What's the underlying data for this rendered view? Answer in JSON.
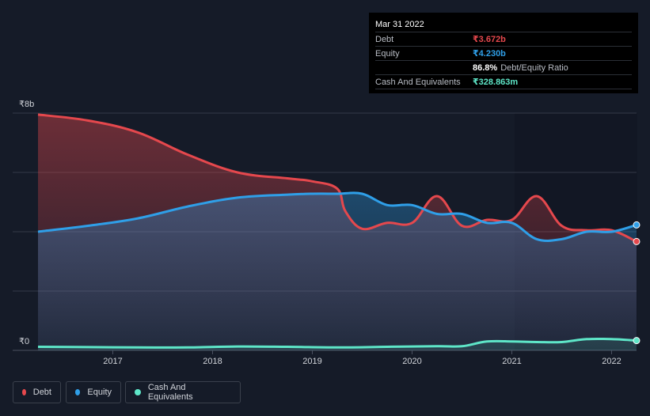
{
  "tooltip": {
    "date": "Mar 31 2022",
    "rows": [
      {
        "label": "Debt",
        "value": "₹3.672b",
        "color": "#e5484d"
      },
      {
        "label": "Equity",
        "value": "₹4.230b",
        "color": "#2f9fe8"
      },
      {
        "label": "",
        "ratio_value": "86.8%",
        "ratio_label": "Debt/Equity Ratio"
      },
      {
        "label": "Cash And Equivalents",
        "value": "₹328.863m",
        "color": "#5ee6c8"
      }
    ]
  },
  "legend": [
    {
      "label": "Debt",
      "color": "#e5484d"
    },
    {
      "label": "Equity",
      "color": "#2f9fe8"
    },
    {
      "label": "Cash And Equivalents",
      "color": "#5ee6c8"
    }
  ],
  "chart_data": {
    "type": "area",
    "title": "",
    "xlabel": "",
    "ylabel": "",
    "unit": "₹ billions",
    "xlim": [
      2016.25,
      2022.25
    ],
    "ylim": [
      0,
      8
    ],
    "y_tick_labels": [
      {
        "value": 8,
        "label": "₹8b"
      },
      {
        "value": 0,
        "label": "₹0"
      }
    ],
    "x_ticks": [
      2017,
      2018,
      2019,
      2020,
      2021,
      2022
    ],
    "x_tick_labels": [
      "2017",
      "2018",
      "2019",
      "2020",
      "2021",
      "2022"
    ],
    "grid": true,
    "series": [
      {
        "name": "Debt",
        "color": "#e5484d",
        "x": [
          2016.25,
          2016.75,
          2017.25,
          2017.75,
          2018.25,
          2018.75,
          2019.0,
          2019.25,
          2019.33,
          2019.5,
          2019.75,
          2020.0,
          2020.25,
          2020.5,
          2020.75,
          2021.0,
          2021.25,
          2021.5,
          2021.75,
          2022.0,
          2022.25
        ],
        "values": [
          7.95,
          7.75,
          7.35,
          6.6,
          6.0,
          5.8,
          5.7,
          5.45,
          4.7,
          4.1,
          4.3,
          4.3,
          5.2,
          4.2,
          4.4,
          4.4,
          5.2,
          4.2,
          4.05,
          4.05,
          3.67
        ]
      },
      {
        "name": "Equity",
        "color": "#2f9fe8",
        "x": [
          2016.25,
          2016.75,
          2017.25,
          2017.75,
          2018.25,
          2018.75,
          2019.0,
          2019.25,
          2019.5,
          2019.75,
          2020.0,
          2020.25,
          2020.5,
          2020.75,
          2021.0,
          2021.25,
          2021.5,
          2021.75,
          2022.0,
          2022.25
        ],
        "values": [
          4.0,
          4.2,
          4.45,
          4.85,
          5.15,
          5.25,
          5.28,
          5.28,
          5.28,
          4.9,
          4.9,
          4.6,
          4.6,
          4.3,
          4.3,
          3.75,
          3.75,
          4.0,
          4.0,
          4.23
        ]
      },
      {
        "name": "Cash And Equivalents",
        "color": "#5ee6c8",
        "x": [
          2016.25,
          2016.75,
          2017.25,
          2017.75,
          2018.25,
          2018.75,
          2019.25,
          2019.75,
          2020.25,
          2020.5,
          2020.75,
          2021.0,
          2021.25,
          2021.5,
          2021.75,
          2022.0,
          2022.25
        ],
        "values": [
          0.12,
          0.11,
          0.1,
          0.1,
          0.13,
          0.12,
          0.1,
          0.12,
          0.14,
          0.14,
          0.3,
          0.3,
          0.28,
          0.28,
          0.38,
          0.38,
          0.33
        ]
      }
    ]
  }
}
